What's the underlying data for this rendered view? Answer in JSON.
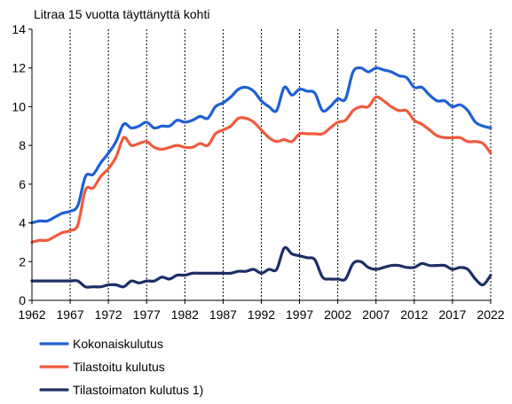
{
  "chart_data": {
    "type": "line",
    "title": "Litraa 15 vuotta täyttänyttä kohti",
    "xlabel": "",
    "ylabel": "",
    "xlim": [
      1962,
      2022
    ],
    "ylim": [
      0,
      14
    ],
    "x_ticks": [
      1962,
      1967,
      1972,
      1977,
      1982,
      1987,
      1992,
      1997,
      2002,
      2007,
      2012,
      2017,
      2022
    ],
    "y_ticks": [
      0,
      2,
      4,
      6,
      8,
      10,
      12,
      14
    ],
    "grid": "vertical",
    "legend_position": "bottom",
    "x": [
      1962,
      1963,
      1964,
      1965,
      1966,
      1967,
      1968,
      1969,
      1970,
      1971,
      1972,
      1973,
      1974,
      1975,
      1976,
      1977,
      1978,
      1979,
      1980,
      1981,
      1982,
      1983,
      1984,
      1985,
      1986,
      1987,
      1988,
      1989,
      1990,
      1991,
      1992,
      1993,
      1994,
      1995,
      1996,
      1997,
      1998,
      1999,
      2000,
      2001,
      2002,
      2003,
      2004,
      2005,
      2006,
      2007,
      2008,
      2009,
      2010,
      2011,
      2012,
      2013,
      2014,
      2015,
      2016,
      2017,
      2018,
      2019,
      2020,
      2021,
      2022
    ],
    "series": [
      {
        "name": "Kokonaiskulutus",
        "color": "#1f5fd4",
        "values": [
          4.0,
          4.1,
          4.1,
          4.3,
          4.5,
          4.6,
          4.9,
          6.4,
          6.5,
          7.1,
          7.6,
          8.2,
          9.1,
          8.9,
          9.0,
          9.2,
          8.9,
          9.0,
          9.0,
          9.3,
          9.2,
          9.3,
          9.5,
          9.4,
          10.0,
          10.2,
          10.5,
          10.9,
          11.0,
          10.8,
          10.3,
          10.0,
          9.8,
          11.0,
          10.6,
          10.9,
          10.8,
          10.7,
          9.8,
          10.0,
          10.4,
          10.4,
          11.8,
          12.0,
          11.8,
          12.0,
          11.9,
          11.8,
          11.6,
          11.5,
          11.0,
          11.0,
          10.6,
          10.3,
          10.3,
          10.0,
          10.1,
          9.8,
          9.2,
          9.0,
          8.9
        ]
      },
      {
        "name": "Tilastoitu kulutus",
        "color": "#f05a3c",
        "values": [
          3.0,
          3.1,
          3.1,
          3.3,
          3.5,
          3.6,
          3.9,
          5.7,
          5.8,
          6.4,
          6.8,
          7.4,
          8.4,
          8.0,
          8.1,
          8.2,
          7.9,
          7.8,
          7.9,
          8.0,
          7.9,
          7.9,
          8.1,
          8.0,
          8.6,
          8.8,
          9.0,
          9.4,
          9.4,
          9.2,
          8.8,
          8.4,
          8.2,
          8.3,
          8.2,
          8.6,
          8.6,
          8.6,
          8.6,
          8.9,
          9.2,
          9.3,
          9.8,
          10.0,
          10.0,
          10.5,
          10.3,
          10.0,
          9.8,
          9.8,
          9.3,
          9.1,
          8.8,
          8.5,
          8.4,
          8.4,
          8.4,
          8.2,
          8.2,
          8.1,
          7.6
        ]
      },
      {
        "name": "Tilastoimaton kulutus 1)",
        "color": "#1c2f66",
        "values": [
          1.0,
          1.0,
          1.0,
          1.0,
          1.0,
          1.0,
          1.0,
          0.7,
          0.7,
          0.7,
          0.8,
          0.8,
          0.7,
          1.0,
          0.9,
          1.0,
          1.0,
          1.2,
          1.1,
          1.3,
          1.3,
          1.4,
          1.4,
          1.4,
          1.4,
          1.4,
          1.4,
          1.5,
          1.5,
          1.6,
          1.4,
          1.6,
          1.6,
          2.7,
          2.4,
          2.3,
          2.2,
          2.1,
          1.2,
          1.1,
          1.1,
          1.1,
          1.9,
          2.0,
          1.7,
          1.6,
          1.7,
          1.8,
          1.8,
          1.7,
          1.7,
          1.9,
          1.8,
          1.8,
          1.8,
          1.6,
          1.7,
          1.6,
          1.1,
          0.8,
          1.3
        ]
      }
    ]
  }
}
